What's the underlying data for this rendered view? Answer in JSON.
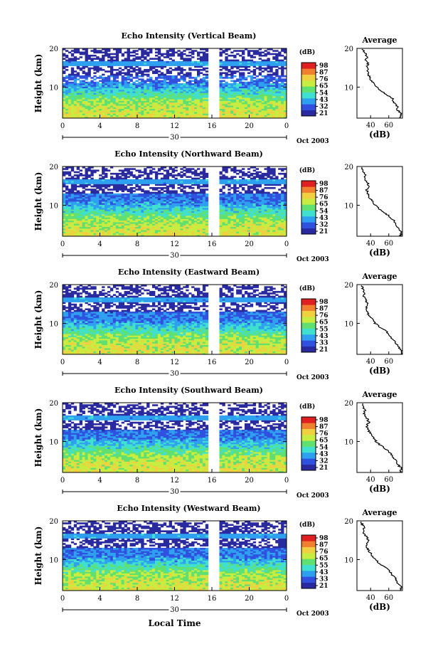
{
  "chart_data": [
    {
      "type": "heatmap",
      "title": "Echo Intensity (Vertical Beam)",
      "ylabel": "Height (km)",
      "x_ticks": [
        "0",
        "4",
        "8",
        "12",
        "16",
        "20",
        "0"
      ],
      "date_label": "30",
      "date_right": "Oct 2003",
      "y_ticks": [
        "10",
        "20"
      ],
      "xlim": [
        0,
        24
      ],
      "ylim": [
        2,
        20
      ],
      "colorbar_unit": "(dB)",
      "colorbar_ticks": [
        "21",
        "32",
        "43",
        "54",
        "65",
        "76",
        "87",
        "98"
      ],
      "profile_title": "Average",
      "profile_xlabel": "(dB)",
      "profile_x_ticks": [
        "40",
        "60"
      ],
      "profile_y_ticks": [
        "10",
        "20"
      ],
      "profile_xlim": [
        25,
        75
      ],
      "profile": {
        "height": [
          2,
          3,
          4,
          5,
          6,
          7,
          8,
          9,
          10,
          11,
          12,
          13,
          14,
          15,
          16,
          17,
          18,
          19,
          20
        ],
        "db": [
          72,
          74,
          70,
          69,
          66,
          64,
          58,
          52,
          46,
          43,
          40,
          38,
          37,
          36,
          37,
          35,
          36,
          33,
          31
        ]
      }
    },
    {
      "type": "heatmap",
      "title": "Echo Intensity (Northward Beam)",
      "ylabel": "Height (km)",
      "x_ticks": [
        "0",
        "4",
        "8",
        "12",
        "16",
        "20",
        "0"
      ],
      "date_label": "30",
      "date_right": "Oct 2003",
      "y_ticks": [
        "10",
        "20"
      ],
      "xlim": [
        0,
        24
      ],
      "ylim": [
        2,
        20
      ],
      "colorbar_unit": "(dB)",
      "colorbar_ticks": [
        "21",
        "32",
        "43",
        "54",
        "65",
        "76",
        "87",
        "98"
      ],
      "profile_title": "",
      "profile_xlabel": "(dB)",
      "profile_x_ticks": [
        "40",
        "60"
      ],
      "profile_y_ticks": [
        "10",
        "20"
      ],
      "profile_xlim": [
        25,
        75
      ],
      "profile": {
        "height": [
          2,
          3,
          4,
          5,
          6,
          7,
          8,
          9,
          10,
          11,
          12,
          13,
          14,
          15,
          16,
          17,
          18,
          19,
          20
        ],
        "db": [
          73,
          74,
          71,
          68,
          66,
          61,
          56,
          50,
          45,
          42,
          39,
          37,
          36,
          38,
          36,
          33,
          34,
          32,
          30
        ]
      }
    },
    {
      "type": "heatmap",
      "title": "Echo Intensity (Eastward Beam)",
      "ylabel": "Height (km)",
      "x_ticks": [
        "0",
        "4",
        "8",
        "12",
        "16",
        "20",
        "0"
      ],
      "date_label": "30",
      "date_right": "Oct 2003",
      "y_ticks": [
        "10",
        "20"
      ],
      "xlim": [
        0,
        24
      ],
      "ylim": [
        2,
        20
      ],
      "colorbar_unit": "(dB)",
      "colorbar_ticks": [
        "21",
        "33",
        "43",
        "55",
        "65",
        "76",
        "87",
        "98"
      ],
      "profile_title": "Average",
      "profile_xlabel": "(dB)",
      "profile_x_ticks": [
        "40",
        "60"
      ],
      "profile_y_ticks": [
        "10",
        "20"
      ],
      "profile_xlim": [
        25,
        75
      ],
      "profile": {
        "height": [
          2,
          3,
          4,
          5,
          6,
          7,
          8,
          9,
          10,
          11,
          12,
          13,
          14,
          15,
          16,
          17,
          18,
          19,
          20
        ],
        "db": [
          73,
          74,
          70,
          68,
          64,
          61,
          57,
          50,
          45,
          42,
          39,
          36,
          35,
          37,
          35,
          32,
          33,
          31,
          30
        ]
      }
    },
    {
      "type": "heatmap",
      "title": "Echo Intensity (Southward Beam)",
      "ylabel": "Height (km)",
      "x_ticks": [
        "0",
        "4",
        "8",
        "12",
        "16",
        "20",
        "0"
      ],
      "date_label": "30",
      "date_right": "Oct 2003",
      "y_ticks": [
        "10",
        "20"
      ],
      "xlim": [
        0,
        24
      ],
      "ylim": [
        2,
        20
      ],
      "colorbar_unit": "(dB)",
      "colorbar_ticks": [
        "21",
        "32",
        "43",
        "54",
        "65",
        "76",
        "87",
        "98"
      ],
      "profile_title": "Average",
      "profile_xlabel": "(dB)",
      "profile_x_ticks": [
        "40",
        "60"
      ],
      "profile_y_ticks": [
        "10",
        "20"
      ],
      "profile_xlim": [
        25,
        75
      ],
      "profile": {
        "height": [
          2,
          3,
          4,
          5,
          6,
          7,
          8,
          9,
          10,
          11,
          12,
          13,
          14,
          15,
          16,
          17,
          18,
          19,
          20
        ],
        "db": [
          73,
          74,
          70,
          68,
          65,
          62,
          57,
          51,
          46,
          43,
          40,
          37,
          36,
          38,
          36,
          33,
          34,
          32,
          30
        ]
      }
    },
    {
      "type": "heatmap",
      "title": "Echo Intensity (Westward Beam)",
      "ylabel": "Height (km)",
      "x_ticks": [
        "0",
        "4",
        "8",
        "12",
        "16",
        "20",
        "0"
      ],
      "date_label": "30",
      "date_right": "Oct 2003",
      "y_ticks": [
        "10",
        "20"
      ],
      "xlim": [
        0,
        24
      ],
      "ylim": [
        2,
        20
      ],
      "colorbar_unit": "(dB)",
      "colorbar_ticks": [
        "21",
        "33",
        "43",
        "55",
        "65",
        "76",
        "87",
        "98"
      ],
      "profile_title": "Average",
      "profile_xlabel": "(dB)",
      "profile_x_ticks": [
        "40",
        "60"
      ],
      "profile_y_ticks": [
        "10",
        "20"
      ],
      "profile_xlim": [
        25,
        75
      ],
      "profile": {
        "height": [
          2,
          3,
          4,
          5,
          6,
          7,
          8,
          9,
          10,
          11,
          12,
          13,
          14,
          15,
          16,
          17,
          18,
          19,
          20
        ],
        "db": [
          73,
          74,
          70,
          68,
          64,
          61,
          56,
          50,
          45,
          42,
          39,
          36,
          35,
          38,
          35,
          32,
          33,
          31,
          30
        ]
      }
    }
  ],
  "xlabel_bottom": "Local Time",
  "data_gap_hours": [
    15.6,
    16.9
  ],
  "colormap": [
    "#2a2aa0",
    "#3050e0",
    "#2fa0f0",
    "#40e0d0",
    "#60e070",
    "#c8ec40",
    "#f0d040",
    "#f08030",
    "#e02020"
  ]
}
